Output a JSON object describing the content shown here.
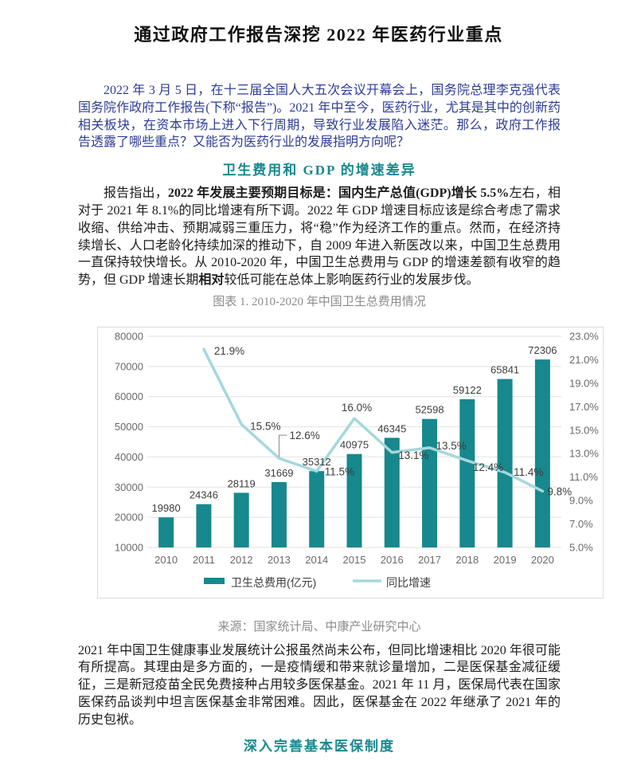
{
  "page": {
    "title": "通过政府工作报告深挖 2022 年医药行业重点"
  },
  "intro": {
    "text": "2022 年 3 月 5 日，在十三届全国人大五次会议开幕会上，国务院总理李克强代表国务院作政府工作报告(下称“报告”)。2021 年中至今，医药行业，尤其是其中的创新药相关板块，在资本市场上进入下行周期，导致行业发展陷入迷茫。那么，政府工作报告透露了哪些重点？又能否为医药行业的发展指明方向呢？"
  },
  "section1": {
    "heading": "卫生费用和 GDP 的增速差异",
    "para": {
      "s1": "报告指出，",
      "s2": "2022 年发展主要预期目标是：国内生产总值(GDP)增长 5.5%",
      "s3": "左右，相对于 2021 年 8.1%的同比增速有所下调。2022 年 GDP 增速目标应该是综合考虑了需求收缩、供给冲击、预期减弱三重压力，将“稳”作为经济工作的重点。然而，在经济持续增长、人口老龄化持续加深的推动下，自 2009 年进入新医改以来，中国卫生总费用一直保持较快增长。从 2010-2020 年，中国卫生总费用与 GDP 的增速差额有收窄的趋势，但 GDP 增速长期",
      "s4": "相对",
      "s5": "较低可能在总体上影响医药行业的发展步伐。"
    }
  },
  "figure": {
    "caption": "图表 1. 2010-2020 年中国卫生总费用情况",
    "source": "来源：国家统计局、中康产业研究中心"
  },
  "chart_data": {
    "type": "combo",
    "title": "图表 1. 2010-2020 年中国卫生总费用情况",
    "categories": [
      "2010",
      "2011",
      "2012",
      "2013",
      "2014",
      "2015",
      "2016",
      "2017",
      "2018",
      "2019",
      "2020"
    ],
    "series": [
      {
        "name": "卫生总费用(亿元)",
        "type": "bar",
        "axis": "left",
        "color": "#17888D",
        "values": [
          19980,
          24346,
          28119,
          31669,
          35312,
          40975,
          46345,
          52598,
          59122,
          65841,
          72306
        ],
        "labels": [
          "19980",
          "24346",
          "28119",
          "31669",
          "35312",
          "40975",
          "46345",
          "52598",
          "59122",
          "65841",
          "72306"
        ]
      },
      {
        "name": "同比增速",
        "type": "line",
        "axis": "right",
        "color": "#A6D8DB",
        "values": [
          null,
          21.9,
          15.5,
          12.6,
          11.5,
          16.0,
          13.1,
          13.5,
          12.4,
          11.4,
          9.8
        ],
        "labels": [
          null,
          "21.9%",
          "15.5%",
          "12.6%",
          "11.5%",
          "16.0%",
          "13.1%",
          "13.5%",
          "12.4%",
          "11.4%",
          "9.8%"
        ]
      }
    ],
    "left_axis": {
      "min": 10000,
      "max": 80000,
      "step": 10000,
      "ticks": [
        "10000",
        "20000",
        "30000",
        "40000",
        "50000",
        "60000",
        "70000",
        "80000"
      ]
    },
    "right_axis": {
      "min": 5,
      "max": 23,
      "step": 2,
      "ticks": [
        "5.0%",
        "7.0%",
        "9.0%",
        "11.0%",
        "13.0%",
        "15.0%",
        "17.0%",
        "19.0%",
        "21.0%",
        "23.0%"
      ]
    },
    "legend_position": "bottom",
    "grid": true,
    "colors": {
      "grid": "#E2E2E2",
      "callout": "#8a8a8a",
      "axis_text": "#6a6a6a",
      "data_label": "#3d3d3d"
    }
  },
  "section2": {
    "para": "2021 年中国卫生健康事业发展统计公报虽然尚未公布，但同比增速相比 2020 年很可能有所提高。其理由是多方面的，一是疫情缓和带来就诊量增加，二是医保基金减征缓征，三是新冠疫苗全民免费接种占用较多医保基金。2021 年 11 月，医保局代表在国家医保药品谈判中坦言医保基金非常困难。因此，医保基金在 2022 年继承了 2021 年的历史包袱。",
    "heading": "深入完善基本医保制度"
  }
}
